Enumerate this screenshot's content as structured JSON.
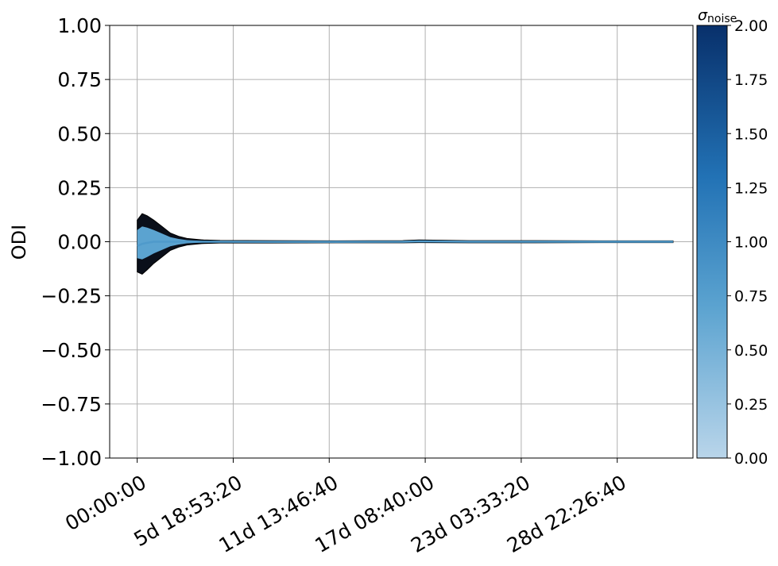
{
  "chart_data": {
    "type": "area",
    "title": "",
    "xlabel": "",
    "ylabel": "ODI",
    "ylim": [
      -1.0,
      1.0
    ],
    "y_ticks": [
      "1.00",
      "0.75",
      "0.50",
      "0.25",
      "0.00",
      "−0.25",
      "−0.50",
      "−0.75",
      "−1.00"
    ],
    "y_tick_values": [
      1.0,
      0.75,
      0.5,
      0.25,
      0.0,
      -0.25,
      -0.5,
      -0.75,
      -1.0
    ],
    "x_ticks": [
      "00:00:00",
      "5d 18:53:20",
      "11d 13:46:40",
      "17d 08:40:00",
      "23d 03:33:20",
      "28d 22:26:40"
    ],
    "x_tick_values_days": [
      0.0,
      5.787,
      11.574,
      17.361,
      23.148,
      28.935
    ],
    "xlim_days": [
      -1.66,
      33.5
    ],
    "x_end_days": 32.3,
    "grid": true,
    "series": [
      {
        "x_days": [
          0.0,
          0.3,
          0.6,
          1.0,
          1.5,
          2.0,
          2.5,
          3.0,
          4.0,
          5.0,
          8.0,
          12.0,
          16.0,
          17.0,
          20.0,
          24.0,
          28.0,
          32.3
        ],
        "upper": [
          0.1,
          0.13,
          0.12,
          0.1,
          0.07,
          0.04,
          0.025,
          0.015,
          0.008,
          0.006,
          0.005,
          0.004,
          0.005,
          0.008,
          0.005,
          0.005,
          0.004,
          0.004
        ],
        "lower": [
          -0.14,
          -0.15,
          -0.13,
          -0.1,
          -0.07,
          -0.04,
          -0.025,
          -0.015,
          -0.008,
          -0.006,
          -0.006,
          -0.005,
          -0.005,
          -0.004,
          -0.005,
          -0.005,
          -0.004,
          -0.004
        ]
      }
    ],
    "colorbar": {
      "label": "σ",
      "label_subscript": "noise",
      "range": [
        0.0,
        2.0
      ],
      "ticks": [
        "2.00",
        "1.75",
        "1.50",
        "1.25",
        "1.00",
        "0.75",
        "0.50",
        "0.25",
        "0.00"
      ],
      "tick_values": [
        2.0,
        1.75,
        1.5,
        1.25,
        1.0,
        0.75,
        0.5,
        0.25,
        0.0
      ],
      "colors": [
        "#b9d5ea",
        "#5ba3d0",
        "#2272b5",
        "#08306b"
      ]
    }
  }
}
